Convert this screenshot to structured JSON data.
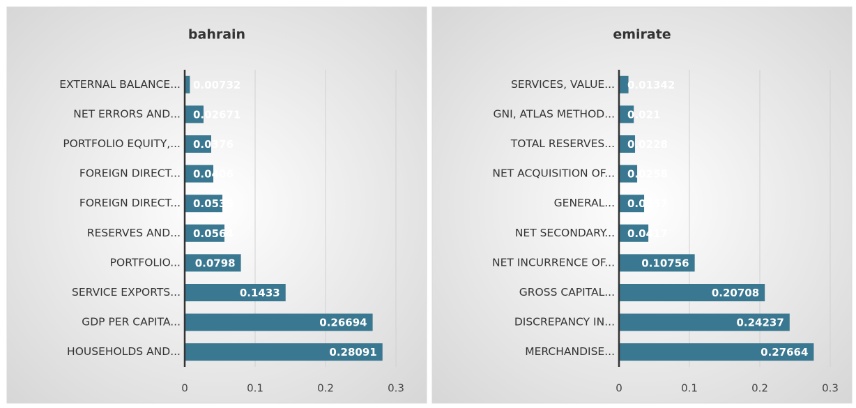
{
  "chart_data": [
    {
      "type": "bar",
      "title": "bahrain",
      "orientation": "horizontal",
      "color": "#3a7891",
      "grid": true,
      "categories": [
        "EXTERNAL BALANCE...",
        "NET ERRORS AND...",
        "PORTFOLIO EQUITY,...",
        "FOREIGN DIRECT...",
        "FOREIGN DIRECT...",
        "RESERVES AND...",
        "PORTFOLIO...",
        "SERVICE EXPORTS...",
        "GDP PER CAPITA...",
        "HOUSEHOLDS AND..."
      ],
      "values": [
        0.00732,
        0.02671,
        0.0376,
        0.0406,
        0.0535,
        0.0564,
        0.0798,
        0.1433,
        0.26694,
        0.28091
      ],
      "xlim": [
        0,
        0.3
      ],
      "xticks": [
        0,
        0.1,
        0.2,
        0.3
      ]
    },
    {
      "type": "bar",
      "title": "emirate",
      "orientation": "horizontal",
      "color": "#3a7891",
      "grid": true,
      "categories": [
        "SERVICES, VALUE...",
        "GNI, ATLAS METHOD...",
        "TOTAL RESERVES...",
        "NET ACQUISITION OF...",
        "GENERAL...",
        "NET SECONDARY...",
        "NET INCURRENCE OF...",
        "GROSS CAPITAL...",
        "DISCREPANCY IN...",
        "MERCHANDISE..."
      ],
      "values": [
        0.01342,
        0.021,
        0.0228,
        0.0258,
        0.0357,
        0.0417,
        0.10756,
        0.20708,
        0.24237,
        0.27664
      ],
      "xlim": [
        0,
        0.3
      ],
      "xticks": [
        0,
        0.1,
        0.2,
        0.3
      ]
    }
  ]
}
